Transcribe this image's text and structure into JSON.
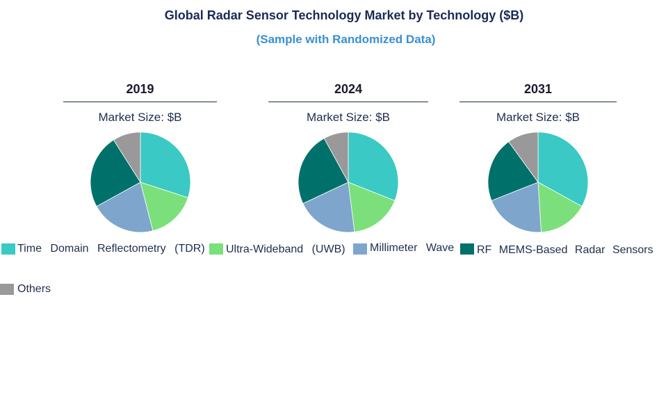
{
  "chart_data": {
    "type": "pie",
    "title": "Global Radar Sensor Technology Market by Technology ($B)",
    "subtitle": "(Sample with Randomized Data)",
    "series_names": [
      "Time Domain Reflectometry (TDR)",
      "Ultra-Wideband (UWB)",
      "Millimeter Wave",
      "RF MEMS-Based Radar Sensors",
      "Others"
    ],
    "colors": [
      "#3ac9c4",
      "#7be07b",
      "#7ea6cc",
      "#00716a",
      "#999999"
    ],
    "charts": [
      {
        "year": "2019",
        "size_label": "Market Size: $B",
        "values": [
          30,
          16,
          21,
          24,
          9
        ]
      },
      {
        "year": "2024",
        "size_label": "Market Size: $B",
        "values": [
          31,
          17,
          20,
          24,
          8
        ]
      },
      {
        "year": "2031",
        "size_label": "Market Size: $B",
        "values": [
          33,
          16,
          20,
          21,
          10
        ]
      }
    ]
  }
}
